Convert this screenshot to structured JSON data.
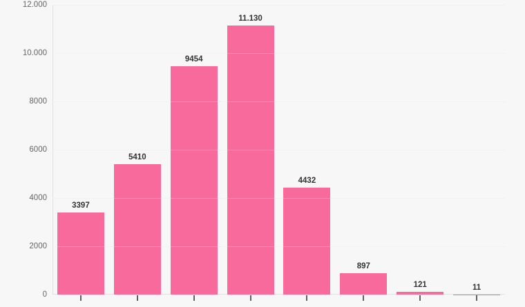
{
  "chart_data": {
    "type": "bar",
    "values": [
      3397,
      5410,
      9454,
      11130,
      4432,
      897,
      121,
      11
    ],
    "value_labels": [
      "3397",
      "5410",
      "9454",
      "11.130",
      "4432",
      "897",
      "121",
      "11"
    ],
    "title": "",
    "xlabel": "",
    "ylabel": "",
    "ylim": [
      0,
      12000
    ],
    "y_ticks": [
      {
        "value": 12000,
        "label": "12.000"
      },
      {
        "value": 10000,
        "label": "10.000"
      },
      {
        "value": 8000,
        "label": "8000"
      },
      {
        "value": 6000,
        "label": "6000"
      },
      {
        "value": 4000,
        "label": "4000"
      },
      {
        "value": 2000,
        "label": "2000"
      },
      {
        "value": 0,
        "label": "0"
      }
    ],
    "x_tick_marks": 8,
    "x_tick_labels_visible": false,
    "grid": true,
    "legend": false,
    "colors": {
      "bar": "#f8699c",
      "background": "#f8f7f7",
      "gridline": "#ececec",
      "axis_line": "#e2e1e1",
      "tick_mark": "#5f5f5f",
      "y_label_text": "#666666",
      "value_label_text": "#333333"
    }
  }
}
